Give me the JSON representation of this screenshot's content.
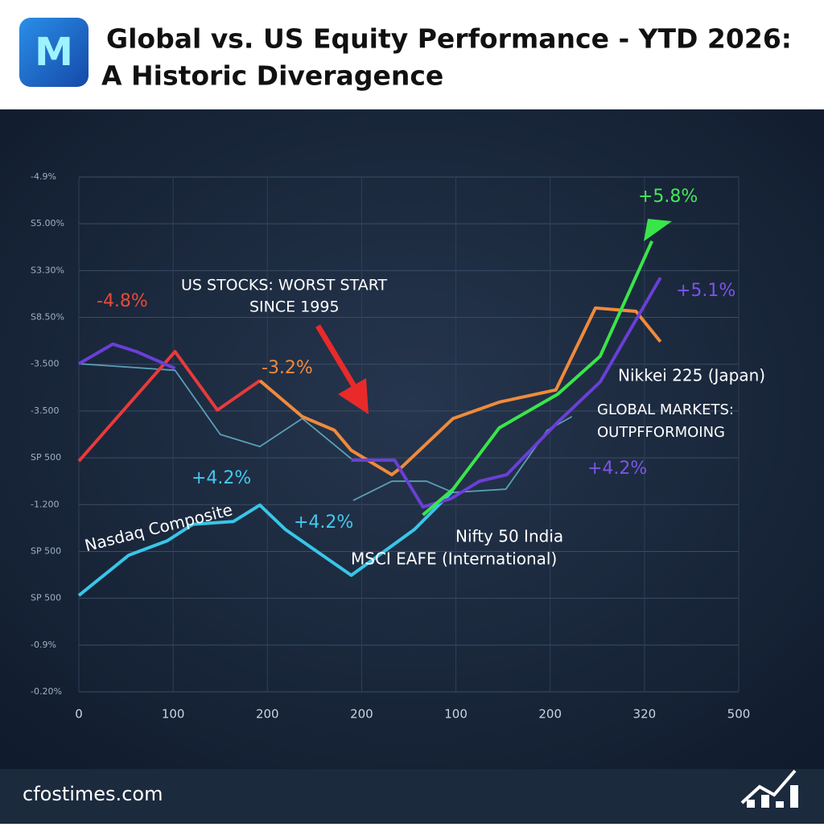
{
  "header": {
    "title_lines": [
      "Global vs. US Equity Performance - YTD 2026:",
      "A Historic Diveragence"
    ]
  },
  "chart_data": {
    "type": "line",
    "xlim": [
      0,
      7
    ],
    "xticks": [
      {
        "value": 0,
        "label": "0"
      },
      {
        "value": 1,
        "label": "100"
      },
      {
        "value": 2,
        "label": "200"
      },
      {
        "value": 3,
        "label": "200"
      },
      {
        "value": 4,
        "label": "100"
      },
      {
        "value": 5,
        "label": "200"
      },
      {
        "value": 6,
        "label": "320"
      },
      {
        "value": 7,
        "label": "500"
      }
    ],
    "ylim": [
      0,
      11
    ],
    "yticks": [
      {
        "value": 11,
        "label": "-4.9%"
      },
      {
        "value": 10,
        "label": "S5.00%"
      },
      {
        "value": 9,
        "label": "S3.30%"
      },
      {
        "value": 8,
        "label": "S8.50%"
      },
      {
        "value": 7,
        "label": "-3.500"
      },
      {
        "value": 6,
        "label": "-3.500"
      },
      {
        "value": 5,
        "label": "SP 500"
      },
      {
        "value": 4,
        "label": "-1.200"
      },
      {
        "value": 3,
        "label": "SP 500"
      },
      {
        "value": 2,
        "label": "SP 500"
      },
      {
        "value": 1,
        "label": "-0.9%"
      },
      {
        "value": 0,
        "label": "-0.20%"
      }
    ],
    "grid": true,
    "series": [
      {
        "color": "#5a9fb4",
        "x": [
          0,
          1.02,
          1.5,
          1.92,
          2.37,
          2.89,
          null,
          2.91,
          3.32,
          3.69,
          3.97,
          4.53,
          4.97,
          5.23
        ],
        "values": [
          7.01,
          6.87,
          5.5,
          5.24,
          5.84,
          4.98,
          null,
          4.09,
          4.5,
          4.5,
          4.26,
          4.33,
          5.59,
          5.88
        ]
      },
      {
        "color": "#e83a3a",
        "x": [
          0,
          1.02,
          1.47,
          1.92
        ],
        "values": [
          4.93,
          7.27,
          6.02,
          6.65
        ]
      },
      {
        "name": "Nasdaq Composite",
        "color": "#38c6e8",
        "x": [
          0,
          0.53,
          0.94,
          1.21,
          1.64,
          1.92,
          2.19,
          2.89,
          3.56,
          3.97
        ],
        "values": [
          2.06,
          2.92,
          3.23,
          3.58,
          3.64,
          3.99,
          3.47,
          2.49,
          3.47,
          4.3
        ]
      },
      {
        "name": "Nikkei 225 (Japan)",
        "color": "#f08a3c",
        "x": [
          1.92,
          2.37,
          2.71,
          2.89,
          3.32,
          3.43,
          3.97,
          4.46,
          5.06,
          5.48,
          5.91,
          6.17
        ],
        "values": [
          6.65,
          5.88,
          5.59,
          5.16,
          4.64,
          4.81,
          5.84,
          6.19,
          6.45,
          8.2,
          8.13,
          7.48
        ]
      },
      {
        "name": "MSCI EAFE (International)",
        "color": "#6a3fd6",
        "x": [
          0,
          0.36,
          0.61,
          1.02,
          null,
          2.89,
          3.35,
          3.65,
          3.95,
          4.25,
          4.54,
          5.08,
          5.53,
          6.17
        ],
        "values": [
          7.01,
          7.43,
          7.27,
          6.91,
          null,
          4.95,
          4.95,
          3.95,
          4.13,
          4.5,
          4.64,
          5.76,
          6.62,
          8.85
        ]
      },
      {
        "name": "Nifty 50 India",
        "color": "#39e64a",
        "x": [
          3.65,
          3.97,
          4.46,
          5.08,
          5.53,
          6.08
        ],
        "values": [
          3.78,
          4.33,
          5.64,
          6.36,
          7.17,
          9.63
        ]
      }
    ],
    "annotations": [
      {
        "text": "-4.8%",
        "color": "#e84a3a"
      },
      {
        "text": "-3.2%",
        "color": "#f08a3c"
      },
      {
        "text": "+4.2%",
        "color": "#45c8ee"
      },
      {
        "text": "+4.2%",
        "color": "#45c8ee"
      },
      {
        "text": "+5.8%",
        "color": "#45e85a"
      },
      {
        "text": "+5.1%",
        "color": "#7b55e8"
      },
      {
        "text": "+4.2%",
        "color": "#7b55e8"
      },
      {
        "text": "US STOCKS: WORST START",
        "color": "#ffffff"
      },
      {
        "text": "SINCE 1995",
        "color": "#ffffff"
      },
      {
        "text": "GLOBAL MARKETS:",
        "color": "#ffffff"
      },
      {
        "text": "OUTPFFORMOING",
        "color": "#ffffff"
      }
    ]
  },
  "footer": {
    "site": "cfostimes.com"
  }
}
